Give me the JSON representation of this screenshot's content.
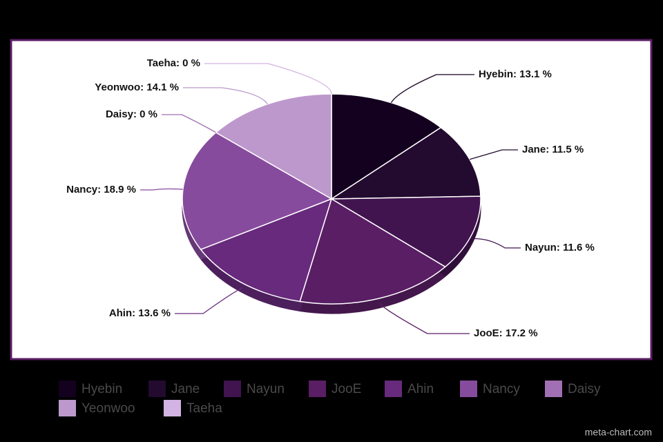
{
  "chart_data": {
    "type": "pie",
    "categories": [
      "Hyebin",
      "Jane",
      "Nayun",
      "JooE",
      "Ahin",
      "Nancy",
      "Daisy",
      "Yeonwoo",
      "Taeha"
    ],
    "values": [
      13.1,
      11.5,
      11.6,
      17.2,
      13.6,
      18.9,
      0,
      14.1,
      0
    ],
    "value_labels": [
      "Hyebin: 13.1 %",
      "Jane: 11.5 %",
      "Nayun: 11.6 %",
      "JooE: 17.2 %",
      "Ahin: 13.6 %",
      "Nancy: 18.9 %",
      "Daisy: 0 %",
      "Yeonwoo: 14.1 %",
      "Taeha: 0 %"
    ],
    "colors": [
      "#14001f",
      "#230a2f",
      "#41144f",
      "#5a1e65",
      "#672a7c",
      "#874b9d",
      "#a16fb3",
      "#bd98cc",
      "#d3b3e3"
    ],
    "legend": true,
    "watermark": "meta-chart.com"
  }
}
